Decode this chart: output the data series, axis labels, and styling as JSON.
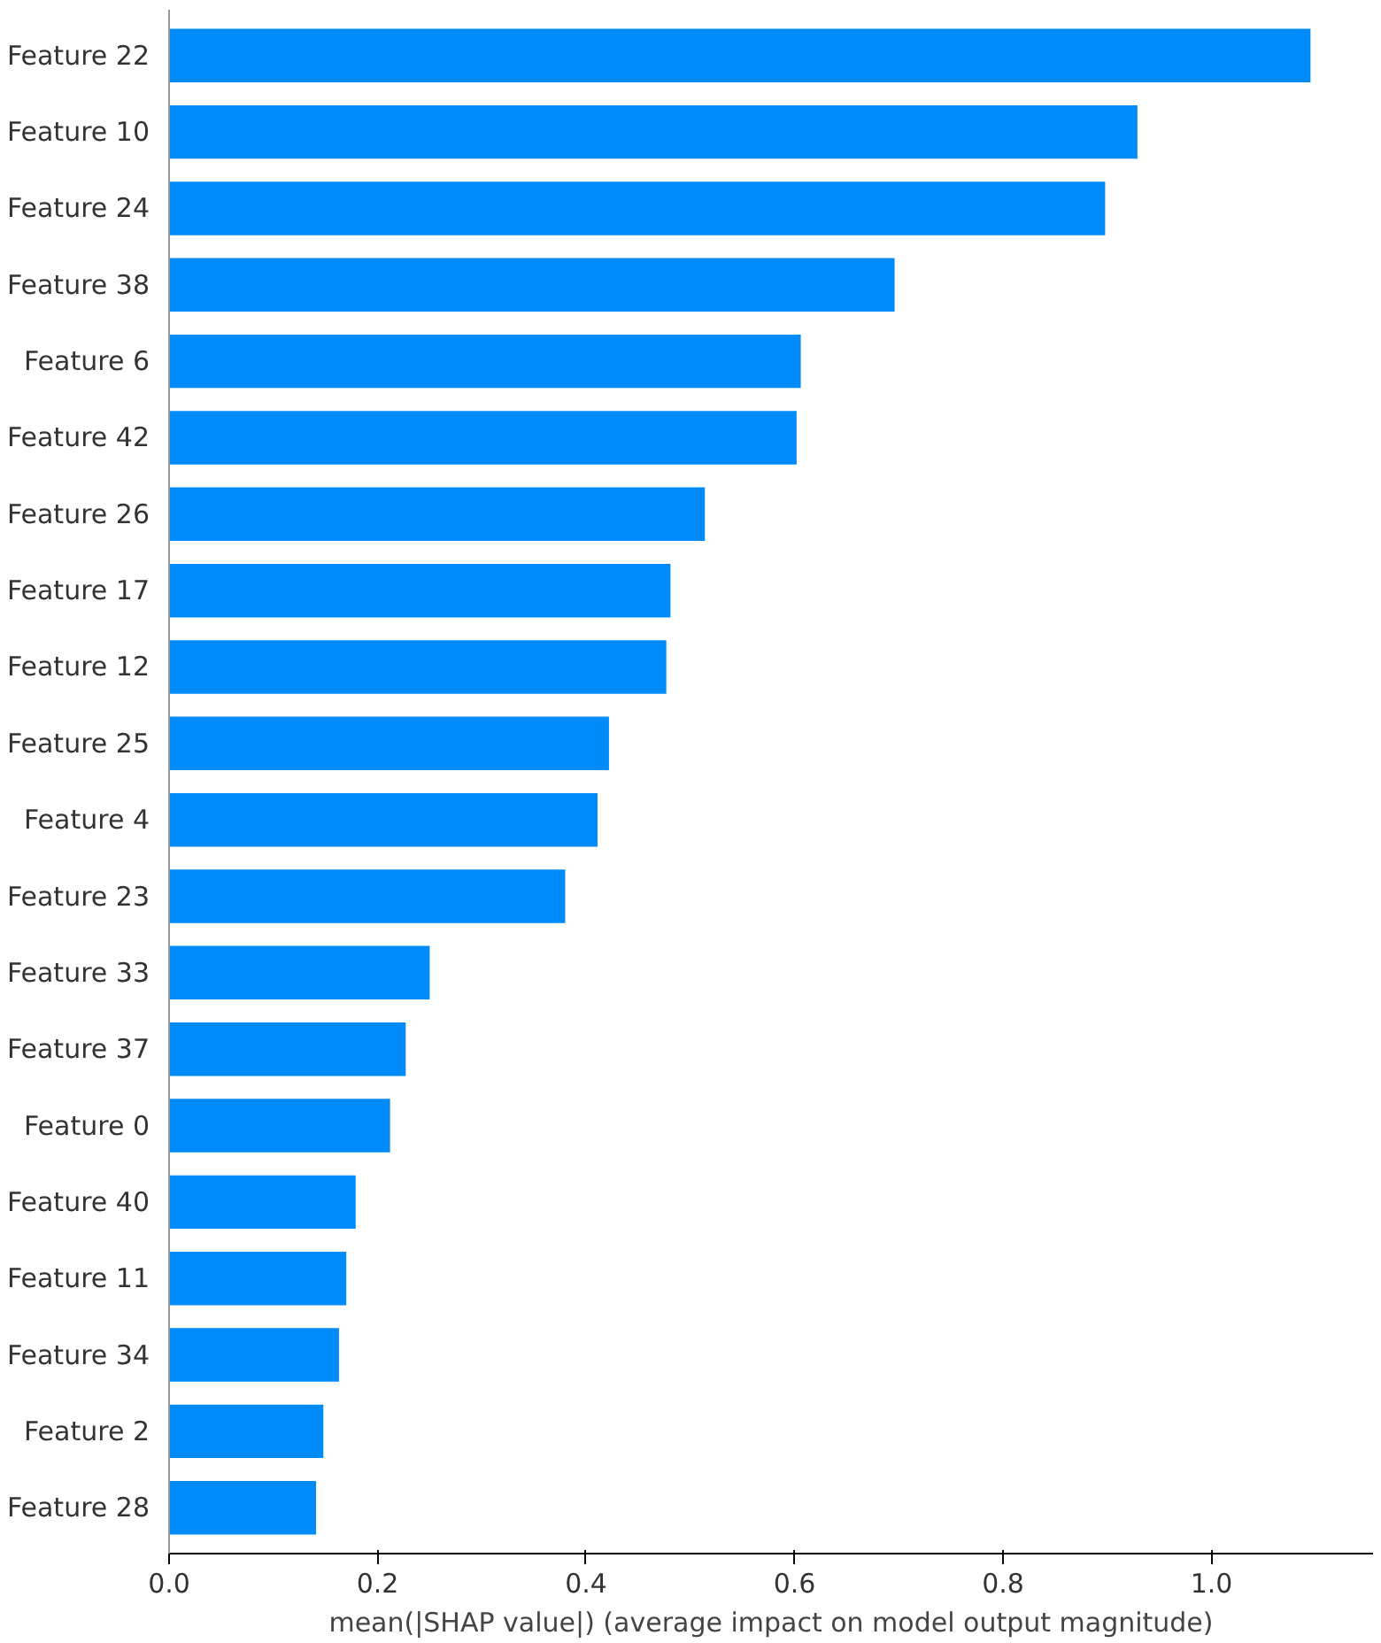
{
  "chart_data": {
    "type": "bar",
    "orientation": "horizontal",
    "xlabel": "mean(|SHAP value|) (average impact on model output magnitude)",
    "categories": [
      "Feature 22",
      "Feature 10",
      "Feature 24",
      "Feature 38",
      "Feature 6",
      "Feature 42",
      "Feature 26",
      "Feature 17",
      "Feature 12",
      "Feature 25",
      "Feature 4",
      "Feature 23",
      "Feature 33",
      "Feature 37",
      "Feature 0",
      "Feature 40",
      "Feature 11",
      "Feature 34",
      "Feature 2",
      "Feature 28"
    ],
    "values": [
      1.095,
      0.929,
      0.898,
      0.696,
      0.606,
      0.602,
      0.514,
      0.481,
      0.477,
      0.422,
      0.411,
      0.38,
      0.25,
      0.227,
      0.212,
      0.179,
      0.17,
      0.163,
      0.148,
      0.141
    ],
    "color": "#008bfb",
    "xlim": [
      0,
      1.155
    ],
    "xticks": [
      {
        "value": 0,
        "label": "0.0"
      },
      {
        "value": 0.2,
        "label": "0.2"
      },
      {
        "value": 0.4,
        "label": "0.4"
      },
      {
        "value": 0.6,
        "label": "0.6"
      },
      {
        "value": 0.8,
        "label": "0.8"
      },
      {
        "value": 1.0,
        "label": "1.0"
      }
    ],
    "grid": false
  }
}
